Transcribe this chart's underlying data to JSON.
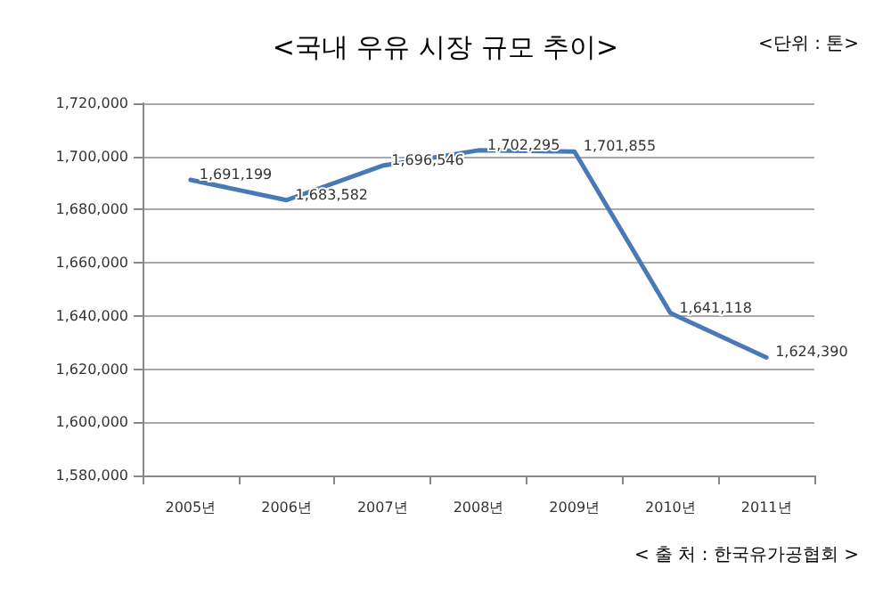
{
  "chart_data": {
    "type": "line",
    "title": "<국내 우유 시장 규모 추이>",
    "annotations": [
      "<단위 : 톤>",
      "< 출 처 : 한국유가공협회 >"
    ],
    "categories": [
      "2005년",
      "2006년",
      "2007년",
      "2008년",
      "2009년",
      "2010년",
      "2011년"
    ],
    "series": [
      {
        "color": "#4a7ab5",
        "values": [
          1691199,
          1683582,
          1696546,
          1702295,
          1701855,
          1641118,
          1624390
        ],
        "value_labels": [
          "1,691,199",
          "1,683,582",
          "1,696,546",
          "1,702,295",
          "1,701,855",
          "1,641,118",
          "1,624,390"
        ]
      }
    ],
    "ylim": [
      1580000,
      1720000
    ],
    "yticks": [
      {
        "value": 1580000,
        "label": "1,580,000"
      },
      {
        "value": 1600000,
        "label": "1,600,000"
      },
      {
        "value": 1620000,
        "label": "1,620,000"
      },
      {
        "value": 1640000,
        "label": "1,640,000"
      },
      {
        "value": 1660000,
        "label": "1,660,000"
      },
      {
        "value": 1680000,
        "label": "1,680,000"
      },
      {
        "value": 1700000,
        "label": "1,700,000"
      },
      {
        "value": 1720000,
        "label": "1,720,000"
      }
    ],
    "grid": "y",
    "marker": "none",
    "line_style": "solid"
  }
}
